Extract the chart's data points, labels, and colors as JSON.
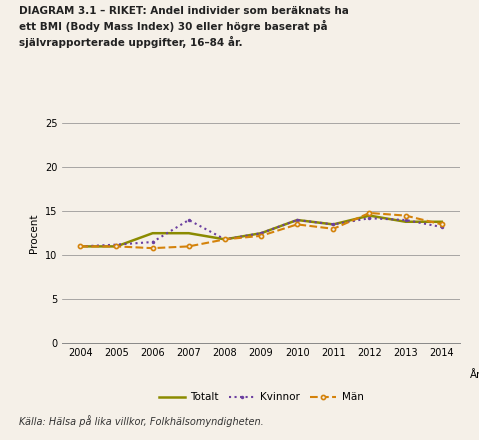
{
  "years": [
    2004,
    2005,
    2006,
    2007,
    2008,
    2009,
    2010,
    2011,
    2012,
    2013,
    2014
  ],
  "totalt": [
    11.0,
    11.0,
    12.5,
    12.5,
    11.8,
    12.5,
    14.0,
    13.5,
    14.5,
    13.8,
    13.8
  ],
  "kvinnor": [
    11.0,
    11.2,
    11.5,
    14.0,
    11.8,
    12.5,
    14.0,
    13.5,
    14.2,
    14.0,
    13.2
  ],
  "man": [
    11.0,
    11.0,
    10.8,
    11.0,
    11.8,
    12.2,
    13.5,
    13.0,
    14.8,
    14.5,
    13.5
  ],
  "totalt_color": "#8B8B00",
  "kvinnor_color": "#6B3FA0",
  "man_color": "#D4820A",
  "bg_color": "#F5F0E8",
  "title_text": "DIAGRAM 3.1 – RIKET: Andel individer som beräknats ha\nett BMI (Body Mass Index) 30 eller högre baserat på\nsjälvrapporterade uppgifter, 16–84 år.",
  "ylabel": "Procent",
  "xlabel": "År",
  "ylim": [
    0,
    25
  ],
  "yticks": [
    0,
    5,
    10,
    15,
    20,
    25
  ],
  "source_text": "Källa: Hälsa på lika villkor, Folkhälsomyndigheten.",
  "legend_labels": [
    "Totalt",
    "Kvinnor",
    "Män"
  ]
}
